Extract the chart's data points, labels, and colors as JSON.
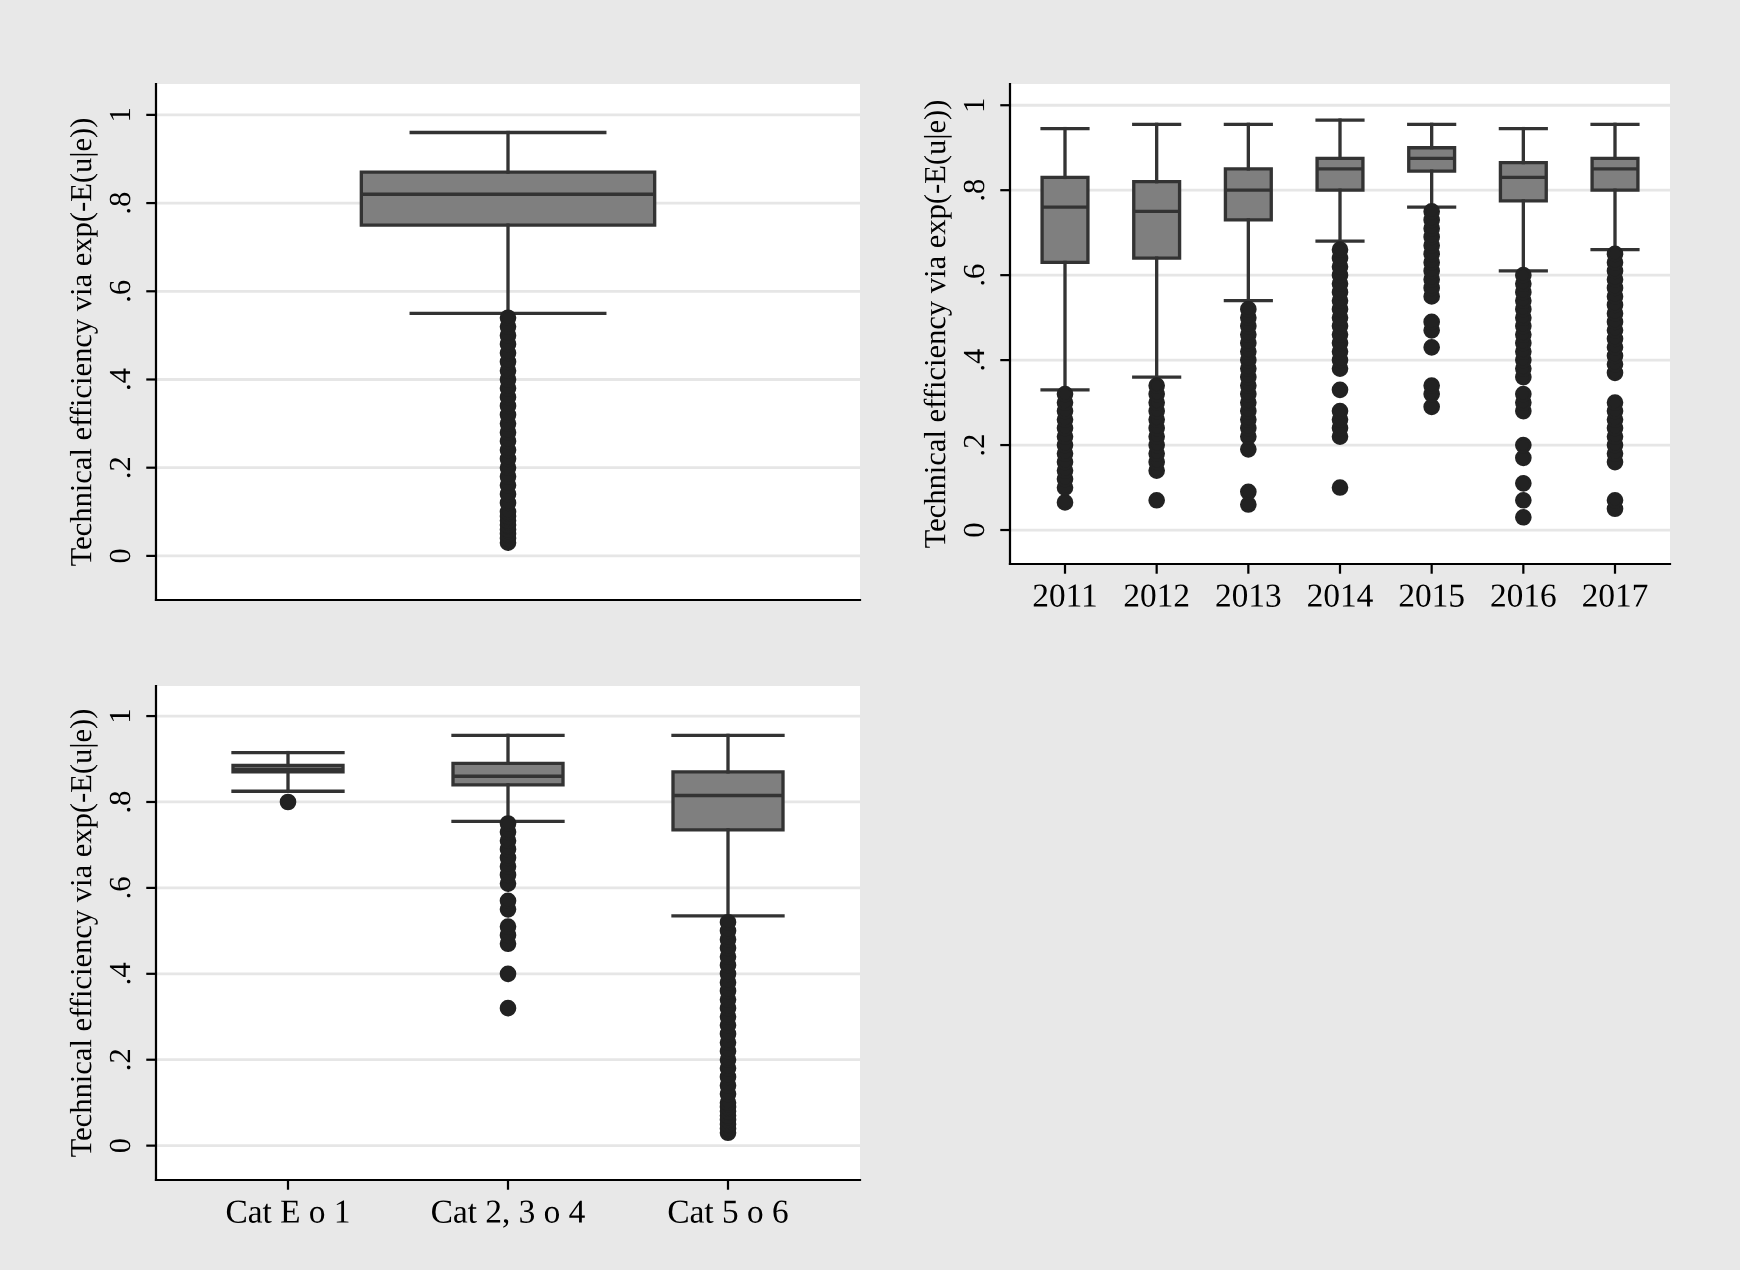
{
  "chart_data": [
    {
      "type": "box",
      "ylabel": "Technical efficiency via exp(-E(u|e))",
      "categories": [
        null
      ],
      "color": "#7f7f7f",
      "ylim": [
        -0.1,
        1.07
      ],
      "yticks": [
        0,
        {
          "value": 0.2,
          "label": ".2"
        },
        {
          "value": 0.4,
          "label": ".4"
        },
        {
          "value": 0.6,
          "label": ".6"
        },
        {
          "value": 0.8,
          "label": ".8"
        },
        1
      ],
      "grid": "y",
      "marker": "circle",
      "boxes": [
        {
          "low": 0.55,
          "q1": 0.75,
          "median": 0.82,
          "q3": 0.87,
          "high": 0.96,
          "outliers": [
            0.03,
            0.04,
            0.05,
            0.06,
            0.07,
            0.08,
            0.09,
            0.1,
            0.12,
            0.14,
            0.16,
            0.18,
            0.2,
            0.22,
            0.24,
            0.26,
            0.28,
            0.3,
            0.32,
            0.34,
            0.36,
            0.38,
            0.4,
            0.42,
            0.44,
            0.46,
            0.48,
            0.5,
            0.52,
            0.54
          ]
        }
      ]
    },
    {
      "type": "box",
      "ylabel": "Technical efficiency via exp(-E(u|e))",
      "categories": [
        "2011",
        "2012",
        "2013",
        "2014",
        "2015",
        "2016",
        "2017"
      ],
      "color": "#7f7f7f",
      "ylim": [
        -0.08,
        1.05
      ],
      "yticks": [
        0,
        {
          "value": 0.2,
          "label": ".2"
        },
        {
          "value": 0.4,
          "label": ".4"
        },
        {
          "value": 0.6,
          "label": ".6"
        },
        {
          "value": 0.8,
          "label": ".8"
        },
        1
      ],
      "grid": "y",
      "marker": "circle",
      "boxes": [
        {
          "low": 0.33,
          "q1": 0.63,
          "median": 0.76,
          "q3": 0.83,
          "high": 0.945,
          "outliers": [
            0.065,
            0.1,
            0.12,
            0.14,
            0.16,
            0.18,
            0.2,
            0.22,
            0.24,
            0.26,
            0.28,
            0.3,
            0.32
          ]
        },
        {
          "low": 0.36,
          "q1": 0.64,
          "median": 0.75,
          "q3": 0.82,
          "high": 0.955,
          "outliers": [
            0.07,
            0.14,
            0.16,
            0.18,
            0.2,
            0.22,
            0.24,
            0.26,
            0.28,
            0.3,
            0.32,
            0.34
          ]
        },
        {
          "low": 0.54,
          "q1": 0.73,
          "median": 0.8,
          "q3": 0.85,
          "high": 0.955,
          "outliers": [
            0.06,
            0.09,
            0.19,
            0.22,
            0.24,
            0.26,
            0.28,
            0.3,
            0.32,
            0.34,
            0.36,
            0.38,
            0.4,
            0.42,
            0.44,
            0.46,
            0.48,
            0.5,
            0.52
          ]
        },
        {
          "low": 0.68,
          "q1": 0.8,
          "median": 0.85,
          "q3": 0.875,
          "high": 0.965,
          "outliers": [
            0.1,
            0.22,
            0.24,
            0.26,
            0.28,
            0.33,
            0.38,
            0.4,
            0.42,
            0.44,
            0.46,
            0.48,
            0.5,
            0.52,
            0.54,
            0.56,
            0.58,
            0.6,
            0.62,
            0.64,
            0.66
          ]
        },
        {
          "low": 0.76,
          "q1": 0.845,
          "median": 0.875,
          "q3": 0.9,
          "high": 0.955,
          "outliers": [
            0.29,
            0.32,
            0.34,
            0.43,
            0.47,
            0.49,
            0.55,
            0.57,
            0.59,
            0.61,
            0.63,
            0.65,
            0.67,
            0.69,
            0.71,
            0.73,
            0.75
          ]
        },
        {
          "low": 0.61,
          "q1": 0.775,
          "median": 0.83,
          "q3": 0.865,
          "high": 0.945,
          "outliers": [
            0.03,
            0.07,
            0.11,
            0.17,
            0.2,
            0.28,
            0.3,
            0.32,
            0.36,
            0.38,
            0.4,
            0.42,
            0.44,
            0.46,
            0.48,
            0.5,
            0.52,
            0.54,
            0.56,
            0.58,
            0.6
          ]
        },
        {
          "low": 0.66,
          "q1": 0.8,
          "median": 0.85,
          "q3": 0.875,
          "high": 0.955,
          "outliers": [
            0.05,
            0.07,
            0.16,
            0.18,
            0.2,
            0.22,
            0.24,
            0.26,
            0.28,
            0.3,
            0.37,
            0.39,
            0.41,
            0.43,
            0.45,
            0.47,
            0.49,
            0.51,
            0.53,
            0.55,
            0.57,
            0.59,
            0.61,
            0.63,
            0.65
          ]
        }
      ]
    },
    {
      "type": "box",
      "ylabel": "Technical efficiency via exp(-E(u|e))",
      "categories": [
        "Cat E o 1",
        "Cat 2, 3 o 4",
        "Cat 5 o 6"
      ],
      "color": "#7f7f7f",
      "ylim": [
        -0.08,
        1.07
      ],
      "yticks": [
        0,
        {
          "value": 0.2,
          "label": ".2"
        },
        {
          "value": 0.4,
          "label": ".4"
        },
        {
          "value": 0.6,
          "label": ".6"
        },
        {
          "value": 0.8,
          "label": ".8"
        },
        1
      ],
      "grid": "y",
      "marker": "circle",
      "boxes": [
        {
          "low": 0.825,
          "q1": 0.87,
          "median": 0.875,
          "q3": 0.885,
          "high": 0.915,
          "outliers": [
            0.8
          ]
        },
        {
          "low": 0.755,
          "q1": 0.84,
          "median": 0.86,
          "q3": 0.89,
          "high": 0.955,
          "outliers": [
            0.32,
            0.4,
            0.47,
            0.49,
            0.51,
            0.55,
            0.57,
            0.61,
            0.63,
            0.65,
            0.67,
            0.69,
            0.71,
            0.73,
            0.75
          ]
        },
        {
          "low": 0.535,
          "q1": 0.735,
          "median": 0.815,
          "q3": 0.87,
          "high": 0.955,
          "outliers": [
            0.03,
            0.04,
            0.05,
            0.06,
            0.07,
            0.08,
            0.09,
            0.1,
            0.12,
            0.14,
            0.16,
            0.18,
            0.2,
            0.22,
            0.24,
            0.26,
            0.28,
            0.3,
            0.32,
            0.34,
            0.36,
            0.38,
            0.4,
            0.42,
            0.44,
            0.46,
            0.48,
            0.5,
            0.52
          ]
        }
      ]
    }
  ]
}
